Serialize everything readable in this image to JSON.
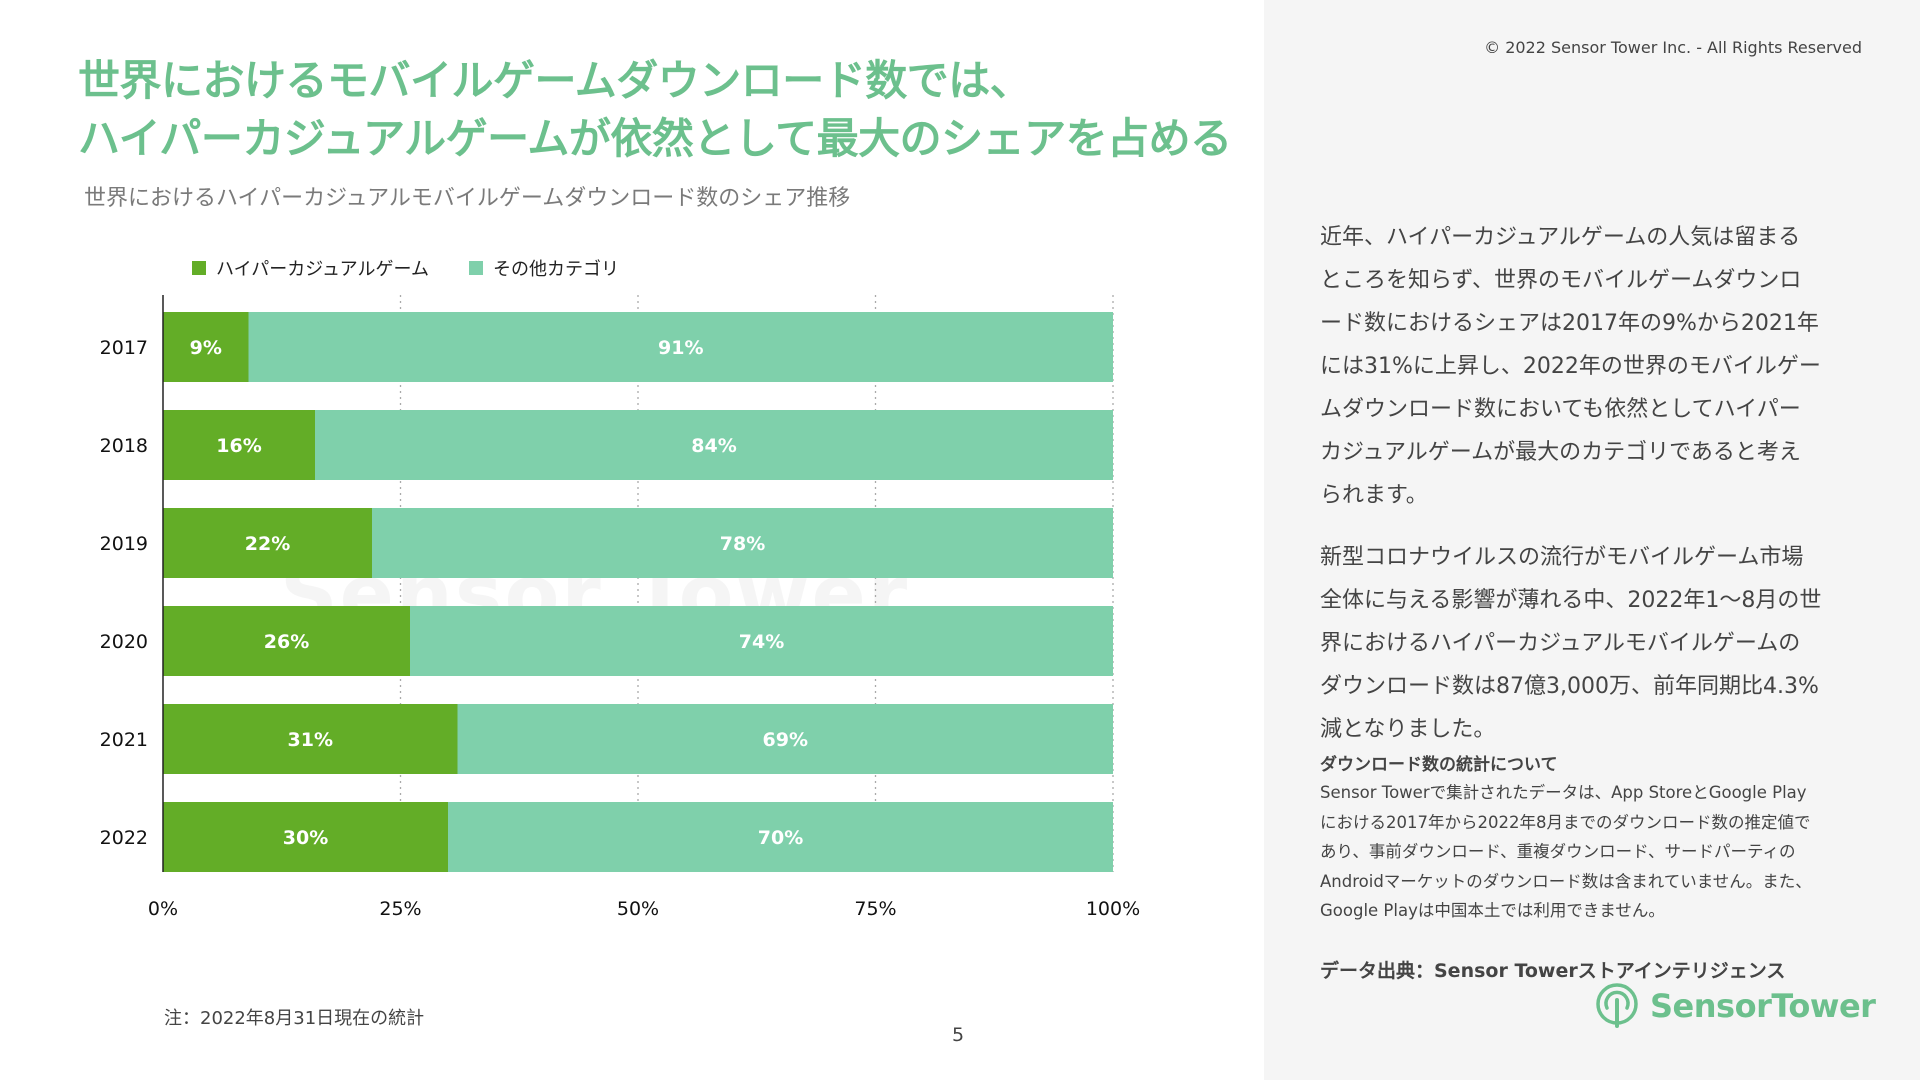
{
  "copyright": "© 2022 Sensor Tower Inc. - All Rights Reserved",
  "headline": {
    "line1": "世界におけるモバイルゲームダウンロード数では、",
    "line2": "ハイパーカジュアルゲームが依然として最大のシェアを占める"
  },
  "subtitle": "世界におけるハイパーカジュアルモバイルゲームダウンロード数のシェア推移",
  "colors": {
    "hypercasual": "#63ad27",
    "other": "#7fd0ab",
    "headline": "#6cc08d"
  },
  "legend": [
    {
      "label": "ハイパーカジュアルゲーム",
      "color": "#63ad27"
    },
    {
      "label": "その他カテゴリ",
      "color": "#7fd0ab"
    }
  ],
  "chart_data": {
    "type": "bar",
    "orientation": "horizontal",
    "stacked": true,
    "categories": [
      "2017",
      "2018",
      "2019",
      "2020",
      "2021",
      "2022"
    ],
    "series": [
      {
        "name": "ハイパーカジュアルゲーム",
        "values": [
          9,
          16,
          22,
          26,
          31,
          30
        ],
        "labels": [
          "9%",
          "16%",
          "22%",
          "26%",
          "31%",
          "30%"
        ]
      },
      {
        "name": "その他カテゴリ",
        "values": [
          91,
          84,
          78,
          74,
          69,
          70
        ],
        "labels": [
          "91%",
          "84%",
          "78%",
          "74%",
          "69%",
          "70%"
        ]
      }
    ],
    "xlim": [
      0,
      100
    ],
    "x_ticks": [
      0,
      25,
      50,
      75,
      100
    ],
    "x_tick_labels": [
      "0%",
      "25%",
      "50%",
      "75%",
      "100%"
    ],
    "grid": "vertical-dotted",
    "legend_position": "top-left"
  },
  "watermark": "Sensor Tower",
  "note": "注：2022年8月31日現在の統計",
  "page_number": "5",
  "paragraph1": "近年、ハイパーカジュアルゲームの人気は留まるところを知らず、世界のモバイルゲームダウンロード数におけるシェアは2017年の9%から2021年には31%に上昇し、2022年の世界のモバイルゲームダウンロード数においても依然としてハイパーカジュアルゲームが最大のカテゴリであると考えられます。",
  "paragraph2": "新型コロナウイルスの流行がモバイルゲーム市場全体に与える影響が薄れる中、2022年1〜8月の世界におけるハイパーカジュアルモバイルゲームのダウンロード数は87億3,000万、前年同期比4.3%減となりました。",
  "methodology": {
    "title": "ダウンロード数の統計について",
    "body": "Sensor Towerで集計されたデータは、App StoreとGoogle Playにおける2017年から2022年8月までのダウンロード数の推定値であり、事前ダウンロード、重複ダウンロード、サードパーティのAndroidマーケットのダウンロード数は含まれていません。また、Google Playは中国本土では利用できません。"
  },
  "source": "データ出典：Sensor Towerストアインテリジェンス",
  "logo": {
    "text": "SensorTower",
    "icon": "sensor-tower-logo-icon"
  }
}
